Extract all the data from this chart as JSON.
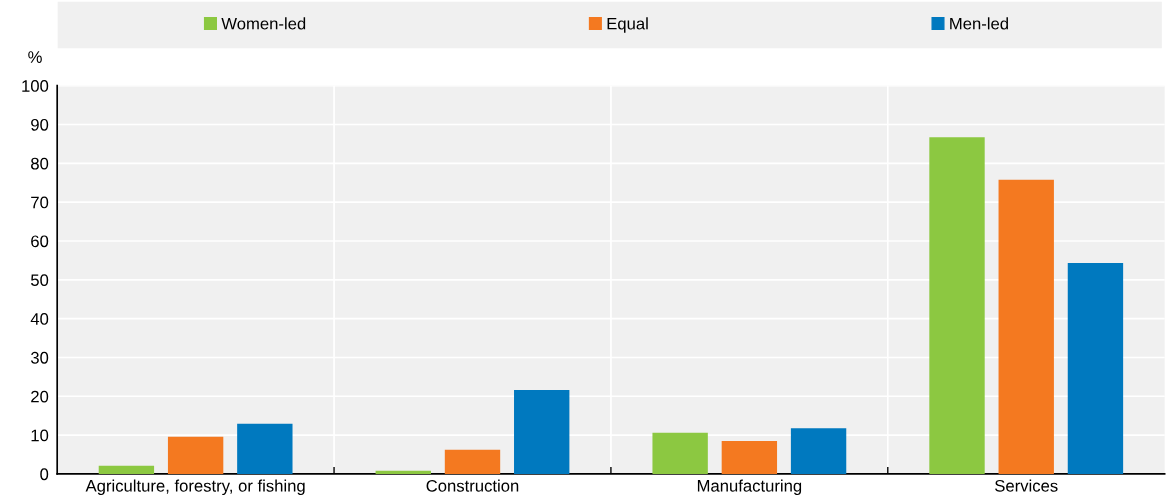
{
  "chart_data": {
    "type": "bar",
    "ylabel": "%",
    "categories": [
      "Agriculture, forestry, or fishing",
      "Construction",
      "Manufacturing",
      "Services"
    ],
    "series": [
      {
        "name": "Women-led",
        "color": "#8cc841",
        "values": [
          2.1,
          0.8,
          10.6,
          86.7
        ]
      },
      {
        "name": "Equal",
        "color": "#f47920",
        "values": [
          9.6,
          6.2,
          8.5,
          75.8
        ]
      },
      {
        "name": "Men-led",
        "color": "#0079bf",
        "values": [
          12.9,
          21.6,
          11.8,
          54.3
        ]
      }
    ],
    "ylim": [
      0,
      100
    ],
    "yticks": [
      0,
      10,
      20,
      30,
      40,
      50,
      60,
      70,
      80,
      90,
      100
    ],
    "grid": "y",
    "legend": "top"
  }
}
